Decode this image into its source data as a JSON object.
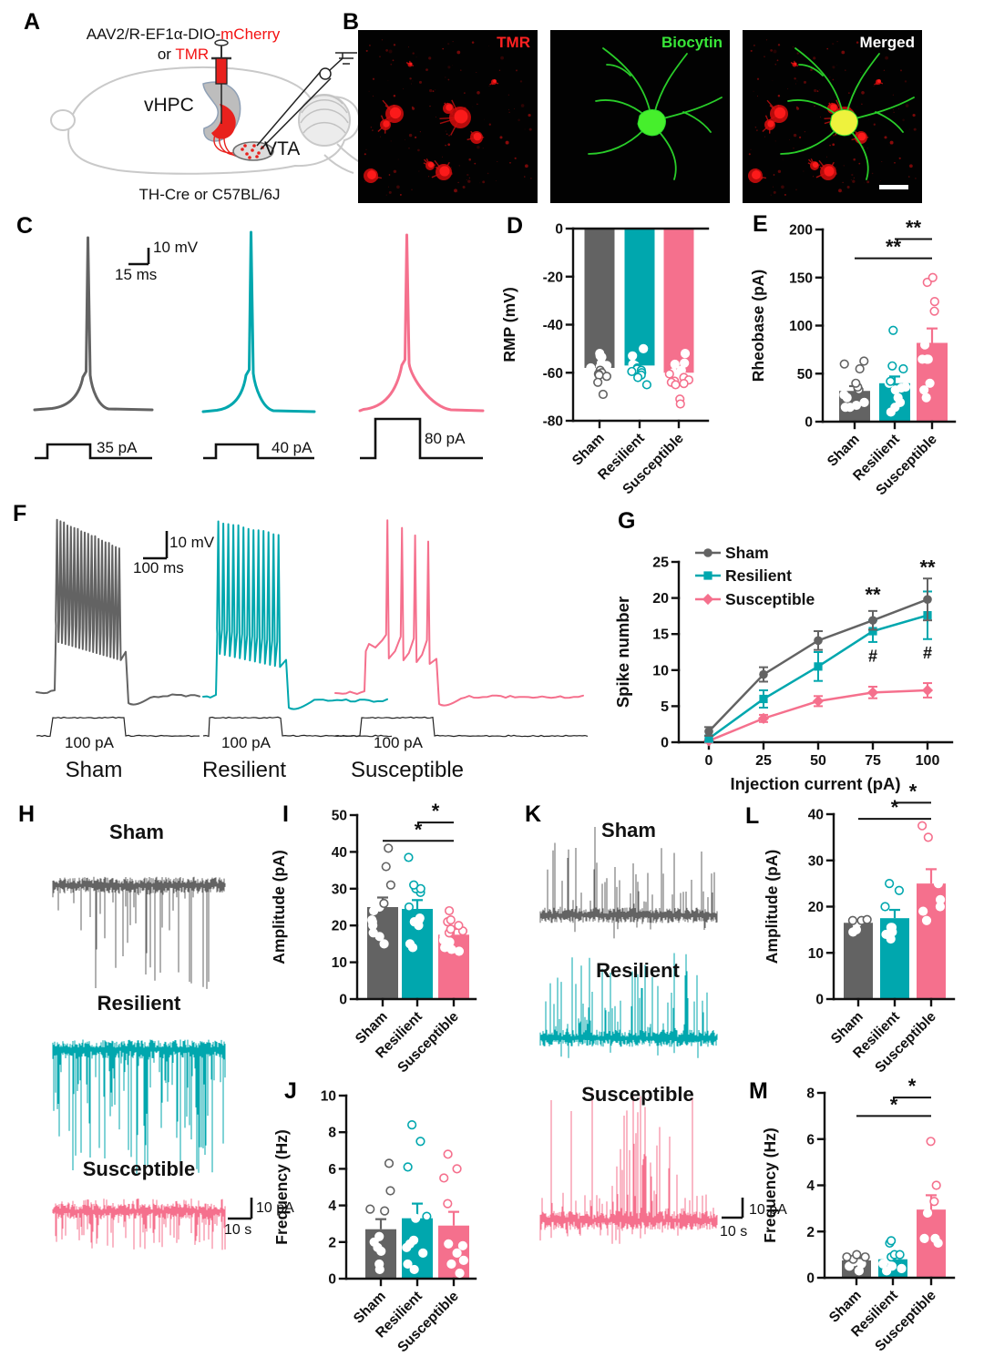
{
  "colors": {
    "sham": "#636363",
    "resilient": "#00A7AE",
    "susceptible": "#F5708D",
    "accent_red": "#E8211D",
    "label_red": "#FF2121",
    "label_green": "#38E638",
    "label_white": "#FFFFFF"
  },
  "groups": [
    "Sham",
    "Resilient",
    "Susceptible"
  ],
  "panels": {
    "a": {
      "letter": "A",
      "construct_black": "AAV2/R-EF1α-DIO-",
      "construct_red": "mCherry",
      "or_black": "or ",
      "or_red": "TMR",
      "vhpc": "vHPC",
      "vta": "VTA",
      "mouse": "TH-Cre or C57BL/6J"
    },
    "b": {
      "letter": "B",
      "labels": [
        "TMR",
        "Biocytin",
        "Merged"
      ]
    },
    "c": {
      "letter": "C",
      "scale_v": "10 mV",
      "scale_h": "15 ms",
      "currents": [
        "35 pA",
        "40 pA",
        "80 pA"
      ]
    },
    "d": {
      "letter": "D"
    },
    "e": {
      "letter": "E"
    },
    "f": {
      "letter": "F",
      "scale_v": "10 mV",
      "scale_h": "100 ms",
      "currents": [
        "100 pA",
        "100 pA",
        "100 pA"
      ],
      "groups": [
        "Sham",
        "Resilient",
        "Susceptible"
      ]
    },
    "g": {
      "letter": "G"
    },
    "h": {
      "letter": "H",
      "groups": [
        "Sham",
        "Resilient",
        "Susceptible"
      ],
      "scale_v": "10 pA",
      "scale_h": "10 s"
    },
    "i": {
      "letter": "I"
    },
    "j": {
      "letter": "J"
    },
    "k": {
      "letter": "K",
      "groups": [
        "Sham",
        "Resilient",
        "Susceptible"
      ],
      "scale_v": "10 pA",
      "scale_h": "10 s"
    },
    "l": {
      "letter": "L"
    },
    "m": {
      "letter": "M"
    }
  },
  "chart_data": [
    {
      "id": "D",
      "type": "bar",
      "variant": "hanging",
      "ylabel": "RMP (mV)",
      "ylim": [
        -80,
        0
      ],
      "yticks": [
        0,
        -20,
        -40,
        -60,
        -80
      ],
      "categories": [
        "Sham",
        "Resilient",
        "Susceptible"
      ],
      "values": [
        -58,
        -57,
        -60
      ],
      "points": [
        [
          -52,
          -53,
          -53.5,
          -56,
          -57,
          -57.5,
          -58,
          -59,
          -60,
          -60.5,
          -61,
          -61.5,
          -64,
          -69
        ],
        [
          -50,
          -53,
          -56.5,
          -57,
          -58,
          -58.5,
          -59,
          -59.5,
          -60,
          -61,
          -62,
          -65
        ],
        [
          -52,
          -56,
          -56.5,
          -59,
          -60,
          -60.5,
          -62,
          -63,
          -63.5,
          -64,
          -64.5,
          -65,
          -71,
          -73
        ]
      ]
    },
    {
      "id": "E",
      "type": "bar",
      "ylabel": "Rheobase (pA)",
      "ylim": [
        0,
        200
      ],
      "yticks": [
        0,
        50,
        100,
        150,
        200
      ],
      "categories": [
        "Sham",
        "Resilient",
        "Susceptible"
      ],
      "values": [
        32,
        40,
        82
      ],
      "errors": [
        5,
        7,
        15
      ],
      "points": [
        [
          15,
          15,
          17,
          20,
          25,
          28,
          33,
          36,
          40,
          55,
          60,
          63
        ],
        [
          10,
          15,
          20,
          25,
          33,
          35,
          36,
          40,
          42,
          55,
          58,
          95
        ],
        [
          25,
          33,
          40,
          65,
          65,
          65,
          65,
          80,
          115,
          125,
          145,
          150
        ]
      ],
      "sig": [
        {
          "pair": [
            0,
            2
          ],
          "text": "**",
          "y": 170
        },
        {
          "pair": [
            1,
            2
          ],
          "text": "**",
          "y": 190
        }
      ]
    },
    {
      "id": "G",
      "type": "line",
      "ylabel": "Spike number",
      "xlabel": "Injection current (pA)",
      "ylim": [
        0,
        25
      ],
      "yticks": [
        0,
        5,
        10,
        15,
        20,
        25
      ],
      "x": [
        0,
        25,
        50,
        75,
        100
      ],
      "series": [
        {
          "name": "Sham",
          "marker": "circle",
          "values": [
            1.5,
            9.4,
            14.1,
            16.9,
            19.8
          ],
          "errors": [
            0.6,
            1.0,
            1.3,
            1.3,
            2.9
          ]
        },
        {
          "name": "Resilient",
          "marker": "square",
          "values": [
            0.5,
            6.0,
            10.5,
            15.4,
            17.6
          ],
          "errors": [
            0.4,
            1.2,
            2.0,
            1.5,
            3.3
          ]
        },
        {
          "name": "Susceptible",
          "marker": "diamond",
          "values": [
            0.2,
            3.3,
            5.7,
            6.9,
            7.2
          ],
          "errors": [
            0.2,
            0.5,
            0.7,
            0.8,
            1.0
          ]
        }
      ],
      "annotations": [
        {
          "x": 75,
          "y": 19.5,
          "text": "**"
        },
        {
          "x": 100,
          "y": 23.3,
          "text": "**"
        },
        {
          "x": 75,
          "y": 11.2,
          "text": "#"
        },
        {
          "x": 100,
          "y": 11.6,
          "text": "#"
        }
      ]
    },
    {
      "id": "I",
      "type": "bar",
      "ylabel": "Amplitude (pA)",
      "ylim": [
        0,
        50
      ],
      "yticks": [
        0,
        10,
        20,
        30,
        40,
        50
      ],
      "categories": [
        "Sham",
        "Resilient",
        "Susceptible"
      ],
      "values": [
        25,
        24.5,
        17.5
      ],
      "errors": [
        2.6,
        2.4,
        1.6
      ],
      "points": [
        [
          15,
          17,
          18,
          20,
          21,
          21.5,
          24,
          25,
          26,
          31,
          36,
          41
        ],
        [
          14,
          15,
          20,
          21,
          21.5,
          22,
          25,
          29,
          30,
          30,
          31,
          38.5
        ],
        [
          13,
          13.5,
          14,
          15.5,
          16,
          17,
          18,
          18.5,
          19,
          20,
          21,
          21.5,
          24
        ]
      ],
      "sig": [
        {
          "pair": [
            0,
            2
          ],
          "text": "*",
          "y": 43
        },
        {
          "pair": [
            1,
            2
          ],
          "text": "*",
          "y": 48
        }
      ]
    },
    {
      "id": "J",
      "type": "bar",
      "ylabel": "Frequency (Hz)",
      "ylim": [
        0,
        10
      ],
      "yticks": [
        0,
        2,
        4,
        6,
        8,
        10
      ],
      "categories": [
        "Sham",
        "Resilient",
        "Susceptible"
      ],
      "values": [
        2.7,
        3.3,
        2.9
      ],
      "errors": [
        0.55,
        0.8,
        0.75
      ],
      "points": [
        [
          0.5,
          0.8,
          1.5,
          1.7,
          2.0,
          2.3,
          3.7,
          3.8,
          4.8,
          6.3
        ],
        [
          0.5,
          0.8,
          1.4,
          1.7,
          1.9,
          2.1,
          3.3,
          3.4,
          6.1,
          7.5,
          8.4
        ],
        [
          0.3,
          0.8,
          1.0,
          1.4,
          1.8,
          1.9,
          4.1,
          5.5,
          6.0,
          6.8
        ]
      ]
    },
    {
      "id": "L",
      "type": "bar",
      "ylabel": "Amplitude (pA)",
      "ylim": [
        0,
        40
      ],
      "yticks": [
        0,
        10,
        20,
        30,
        40
      ],
      "categories": [
        "Sham",
        "Resilient",
        "Susceptible"
      ],
      "values": [
        16.5,
        17.5,
        25
      ],
      "errors": [
        0.6,
        1.8,
        3.1
      ],
      "points": [
        [
          14.5,
          15,
          16.5,
          16.5,
          17,
          17,
          17.2
        ],
        [
          13,
          14,
          14.5,
          15.5,
          15.5,
          20,
          23.5,
          25
        ],
        [
          17,
          19,
          20,
          21.5,
          25,
          35,
          37.5
        ]
      ],
      "sig": [
        {
          "pair": [
            0,
            2
          ],
          "text": "*",
          "y": 39
        },
        {
          "pair": [
            1,
            2
          ],
          "text": "*",
          "y": 42.5
        }
      ]
    },
    {
      "id": "M",
      "type": "bar",
      "ylabel": "Frequency (Hz)",
      "ylim": [
        0,
        8
      ],
      "yticks": [
        0,
        2,
        4,
        6,
        8
      ],
      "categories": [
        "Sham",
        "Resilient",
        "Susceptible"
      ],
      "values": [
        0.75,
        0.8,
        2.95
      ],
      "errors": [
        0.1,
        0.12,
        0.62
      ],
      "points": [
        [
          0.3,
          0.5,
          0.6,
          0.7,
          0.8,
          0.9,
          0.9,
          1.0
        ],
        [
          0.3,
          0.4,
          0.5,
          0.6,
          0.8,
          0.9,
          1.0,
          1.0,
          1.5,
          1.6
        ],
        [
          1.5,
          1.7,
          1.7,
          2.8,
          3.3,
          4.0,
          5.9
        ]
      ],
      "sig": [
        {
          "pair": [
            0,
            2
          ],
          "text": "*",
          "y": 7.0
        },
        {
          "pair": [
            1,
            2
          ],
          "text": "*",
          "y": 7.8
        }
      ]
    }
  ]
}
